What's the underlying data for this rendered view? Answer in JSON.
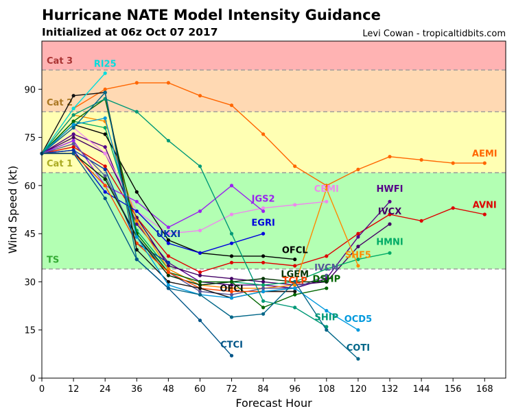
{
  "header": {
    "title": "Hurricane NATE Model Intensity Guidance",
    "subtitle": "Initialized at 06z Oct 07 2017",
    "credit": "Levi Cowan - tropicaltidbits.com"
  },
  "chart_data": {
    "type": "line",
    "xlabel": "Forecast Hour",
    "ylabel": "Wind Speed (kt)",
    "xlim": [
      0,
      176
    ],
    "ylim": [
      0,
      105
    ],
    "xticks": [
      0,
      12,
      24,
      36,
      48,
      60,
      72,
      84,
      96,
      108,
      120,
      132,
      144,
      156,
      168
    ],
    "yticks": [
      0,
      15,
      30,
      45,
      60,
      75,
      90
    ],
    "bands": [
      {
        "name": "TS",
        "from": 34,
        "to": 64,
        "color": "#b3ffb3",
        "label_color": "#33aa33",
        "label_y": 37
      },
      {
        "name": "Cat 1",
        "from": 64,
        "to": 83,
        "color": "#ffffb3",
        "label_color": "#aaaa22",
        "label_y": 67
      },
      {
        "name": "Cat 2",
        "from": 83,
        "to": 96,
        "color": "#ffd9b3",
        "label_color": "#aa7722",
        "label_y": 86
      },
      {
        "name": "Cat 3",
        "from": 96,
        "to": 105,
        "color": "#ffb3b3",
        "label_color": "#aa3333",
        "label_y": 99
      }
    ],
    "series": [
      {
        "name": "AEMI",
        "color": "#ff6600",
        "x": [
          0,
          12,
          24,
          36,
          48,
          60,
          72,
          84,
          96,
          108,
          120,
          132,
          144,
          156,
          168
        ],
        "y": [
          70,
          84,
          90,
          92,
          92,
          88,
          85,
          76,
          66,
          60,
          65,
          69,
          68,
          67,
          67
        ],
        "label_x": 168,
        "label_y": 69
      },
      {
        "name": "AVNI",
        "color": "#dd0000",
        "x": [
          0,
          12,
          24,
          36,
          48,
          60,
          72,
          84,
          96,
          108,
          120,
          132,
          144,
          156,
          168
        ],
        "y": [
          70,
          72,
          66,
          50,
          38,
          33,
          36,
          36,
          35,
          38,
          45,
          51,
          49,
          53,
          51
        ],
        "label_x": 168,
        "label_y": 53
      },
      {
        "name": "HWFI",
        "color": "#550088",
        "x": [
          0,
          12,
          24,
          36,
          48,
          60,
          72,
          84,
          96,
          108,
          120,
          132
        ],
        "y": [
          70,
          76,
          72,
          48,
          36,
          30,
          29,
          29,
          28,
          31,
          44,
          55
        ],
        "label_x": 132,
        "label_y": 58
      },
      {
        "name": "IVCX",
        "color": "#440066",
        "x": [
          0,
          12,
          24,
          36,
          48,
          60,
          72,
          84,
          96,
          108,
          120,
          132
        ],
        "y": [
          70,
          75,
          70,
          50,
          35,
          32,
          31,
          30,
          29,
          30,
          41,
          48
        ],
        "label_x": 132,
        "label_y": 51
      },
      {
        "name": "HMNI",
        "color": "#00aa66",
        "x": [
          0,
          12,
          24,
          36,
          48,
          60,
          72,
          84,
          96,
          108,
          120,
          132
        ],
        "y": [
          70,
          80,
          78,
          46,
          34,
          29,
          30,
          29,
          30,
          34,
          37,
          39
        ],
        "label_x": 132,
        "label_y": 41.5
      },
      {
        "name": "SHF5",
        "color": "#ff8800",
        "x": [
          0,
          12,
          24,
          36,
          48,
          60,
          72,
          84,
          96,
          108,
          120
        ],
        "y": [
          70,
          82,
          80,
          49,
          34,
          29,
          28,
          28,
          29,
          59,
          35
        ],
        "label_x": 120,
        "label_y": 37.5
      },
      {
        "name": "CEMI",
        "color": "#ee88ee",
        "x": [
          0,
          12,
          24,
          36,
          48,
          60,
          72,
          84,
          96,
          108
        ],
        "y": [
          70,
          78,
          70,
          52,
          45,
          46,
          51,
          53,
          54,
          55
        ],
        "label_x": 108,
        "label_y": 58
      },
      {
        "name": "JGS2",
        "color": "#9922ee",
        "x": [
          0,
          12,
          24,
          36,
          48,
          60,
          72,
          84
        ],
        "y": [
          70,
          74,
          60,
          55,
          47,
          52,
          60,
          52
        ],
        "label_x": 84,
        "label_y": 55
      },
      {
        "name": "OFCL",
        "color": "#000000",
        "x": [
          0,
          12,
          24,
          36,
          48,
          60,
          72,
          84,
          96
        ],
        "y": [
          70,
          79,
          76,
          58,
          43,
          39,
          38,
          38,
          37
        ],
        "label_x": 96,
        "label_y": 39
      },
      {
        "name": "EGRI",
        "color": "#0000dd",
        "x": [
          0,
          12,
          24,
          36,
          48,
          60,
          72,
          84
        ],
        "y": [
          70,
          71,
          58,
          52,
          42,
          39,
          42,
          45
        ],
        "label_x": 84,
        "label_y": 47.5
      },
      {
        "name": "UKXI",
        "color": "#0033aa",
        "x": [
          0,
          12,
          24,
          36,
          48
        ],
        "y": [
          70,
          71,
          65,
          42,
          36
        ],
        "label_x": 48,
        "label_y": 44
      },
      {
        "name": "IVCN",
        "color": "#555599",
        "x": [
          0,
          12,
          24,
          36,
          48,
          60,
          72,
          84,
          96,
          108
        ],
        "y": [
          70,
          73,
          63,
          44,
          33,
          27,
          26,
          28,
          28,
          32
        ],
        "label_x": 108,
        "label_y": 33.5
      },
      {
        "name": "LGEM",
        "color": "#003300",
        "x": [
          0,
          12,
          24,
          36,
          48,
          60,
          72,
          84,
          96,
          108
        ],
        "y": [
          70,
          70,
          62,
          44,
          32,
          29,
          30,
          31,
          30,
          30
        ],
        "label_x": 96,
        "label_y": 31.5
      },
      {
        "name": "DSHP",
        "color": "#006600",
        "x": [
          0,
          12,
          24,
          36,
          48,
          60,
          72,
          84,
          96,
          108
        ],
        "y": [
          70,
          80,
          87,
          45,
          33,
          30,
          30,
          22,
          26,
          28
        ],
        "label_x": 108,
        "label_y": 30
      },
      {
        "name": "TCLP",
        "color": "#ff4400",
        "x": [
          0,
          12,
          24,
          36,
          48,
          60,
          72,
          84,
          96
        ],
        "y": [
          70,
          70,
          60,
          42,
          33,
          28,
          27,
          27,
          27
        ],
        "label_x": 96,
        "label_y": 29.5
      },
      {
        "name": "OFCI",
        "color": "#111111",
        "x": [
          0,
          12,
          24,
          36,
          48,
          60,
          72,
          84,
          96
        ],
        "y": [
          70,
          88,
          89,
          40,
          30,
          28,
          25,
          27,
          27
        ],
        "label_x": 72,
        "label_y": 27
      },
      {
        "name": "RI25",
        "color": "#00dddd",
        "x": [
          0,
          12,
          24
        ],
        "y": [
          70,
          84,
          95
        ],
        "label_x": 24,
        "label_y": 97
      },
      {
        "name": "OCD5",
        "color": "#0099dd",
        "x": [
          0,
          12,
          24,
          36,
          48,
          60,
          72,
          84,
          96,
          108,
          120
        ],
        "y": [
          70,
          79,
          81,
          44,
          29,
          26,
          25,
          27,
          28,
          21,
          15
        ],
        "label_x": 120,
        "label_y": 17.5
      },
      {
        "name": "SHIP",
        "color": "#009977",
        "x": [
          0,
          12,
          24,
          36,
          48,
          60,
          72,
          84,
          96,
          108
        ],
        "y": [
          70,
          82,
          87,
          83,
          74,
          66,
          45,
          24,
          22,
          16
        ],
        "label_x": 108,
        "label_y": 18
      },
      {
        "name": "COTI",
        "color": "#006688",
        "x": [
          0,
          12,
          24,
          36,
          48,
          60,
          72,
          84,
          96,
          108,
          120
        ],
        "y": [
          70,
          78,
          89,
          37,
          28,
          26,
          19,
          20,
          30,
          15,
          6
        ],
        "label_x": 120,
        "label_y": 8.5
      },
      {
        "name": "CTCI",
        "color": "#005588",
        "x": [
          0,
          12,
          24,
          36,
          48,
          60,
          72
        ],
        "y": [
          70,
          70,
          56,
          37,
          28,
          18,
          7
        ],
        "label_x": 72,
        "label_y": 9.5
      }
    ]
  }
}
